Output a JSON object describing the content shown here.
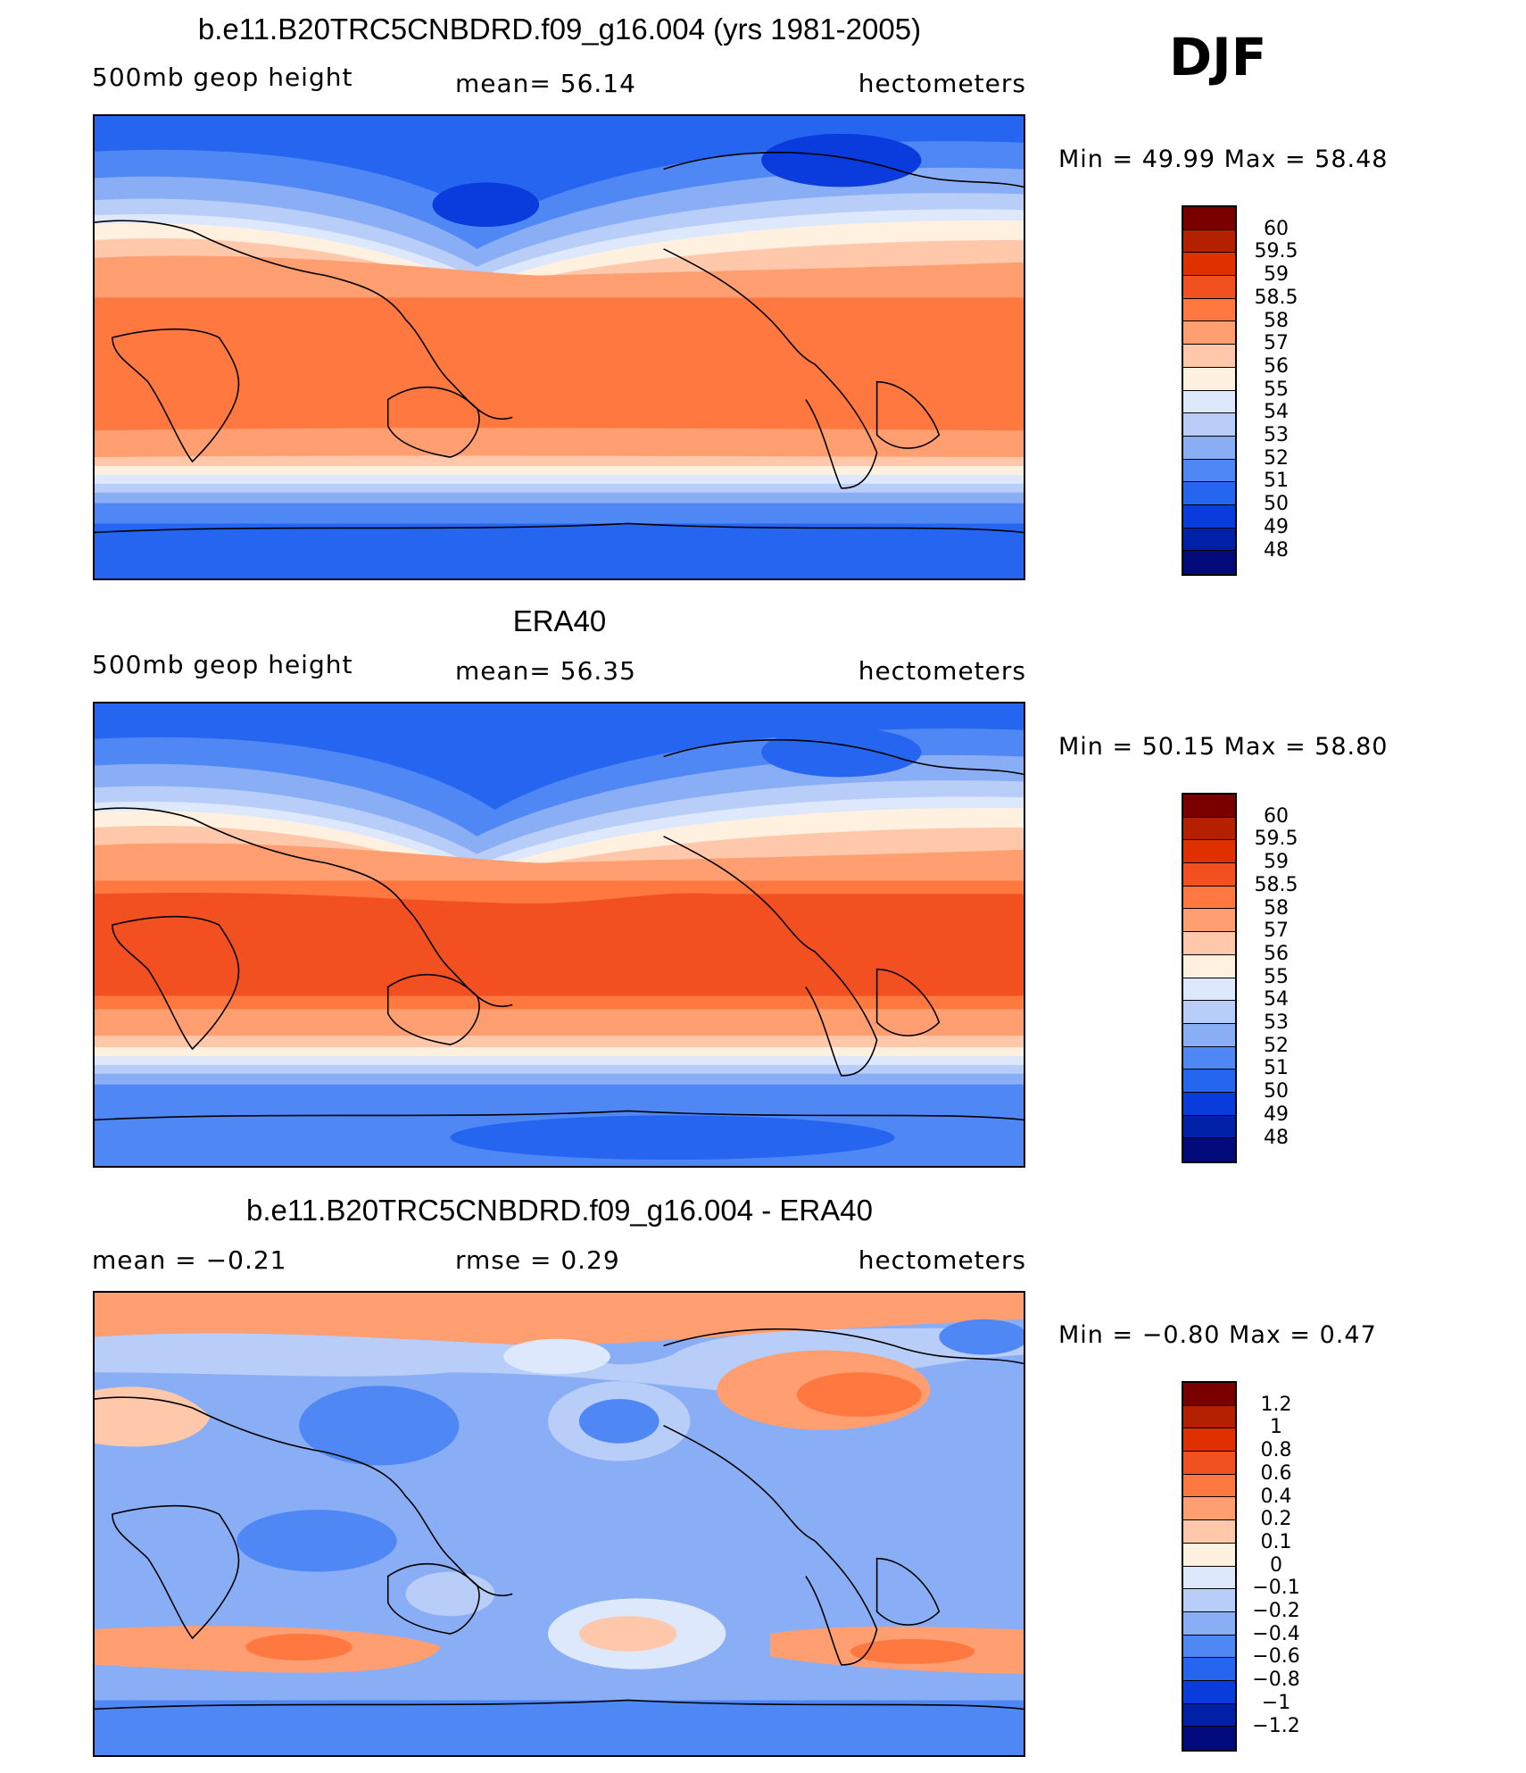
{
  "season": "DJF",
  "panels": [
    {
      "title": "b.e11.B20TRC5CNBDRD.f09_g16.004 (yrs 1981-2005)",
      "left": "500mb  geop  height",
      "center": "mean=   56.14",
      "right": "hectometers",
      "min_max": "Min  =    49.99  Max  =    58.48",
      "cbar_labels": [
        "60",
        "59.5",
        "59",
        "58.5",
        "58",
        "57",
        "56",
        "55",
        "54",
        "53",
        "52",
        "51",
        "50",
        "49",
        "48"
      ],
      "cbar_colors": [
        "#7a0000",
        "#b52000",
        "#e03000",
        "#f25020",
        "#ff7840",
        "#ff9e70",
        "#ffc8aa",
        "#fff0e0",
        "#dde8fc",
        "#b8cdf8",
        "#8aaef5",
        "#4f88f5",
        "#2565ef",
        "#0a3bdc",
        "#0020a8",
        "#000a7a"
      ],
      "map_type": "model"
    },
    {
      "title": "ERA40",
      "left": "500mb  geop  height",
      "center": "mean=   56.35",
      "right": "hectometers",
      "min_max": "Min  =    50.15  Max  =    58.80",
      "cbar_labels": [
        "60",
        "59.5",
        "59",
        "58.5",
        "58",
        "57",
        "56",
        "55",
        "54",
        "53",
        "52",
        "51",
        "50",
        "49",
        "48"
      ],
      "cbar_colors": [
        "#7a0000",
        "#b52000",
        "#e03000",
        "#f25020",
        "#ff7840",
        "#ff9e70",
        "#ffc8aa",
        "#fff0e0",
        "#dde8fc",
        "#b8cdf8",
        "#8aaef5",
        "#4f88f5",
        "#2565ef",
        "#0a3bdc",
        "#0020a8",
        "#000a7a"
      ],
      "map_type": "obs"
    },
    {
      "title": "b.e11.B20TRC5CNBDRD.f09_g16.004 - ERA40",
      "left": "mean  =    −0.21",
      "center": "rmse  =     0.29",
      "right": "hectometers",
      "min_max": "Min  =   −0.80  Max  =     0.47",
      "cbar_labels": [
        "1.2",
        "1",
        "0.8",
        "0.6",
        "0.4",
        "0.2",
        "0.1",
        "0",
        "−0.1",
        "−0.2",
        "−0.4",
        "−0.6",
        "−0.8",
        "−1",
        "−1.2"
      ],
      "cbar_colors": [
        "#7a0000",
        "#b52000",
        "#e03000",
        "#f25020",
        "#ff7840",
        "#ff9e70",
        "#ffc8aa",
        "#fff0e0",
        "#dde8fc",
        "#b8cdf8",
        "#8aaef5",
        "#4f88f5",
        "#2565ef",
        "#0a3bdc",
        "#0020a8",
        "#000a7a"
      ],
      "map_type": "diff"
    }
  ]
}
